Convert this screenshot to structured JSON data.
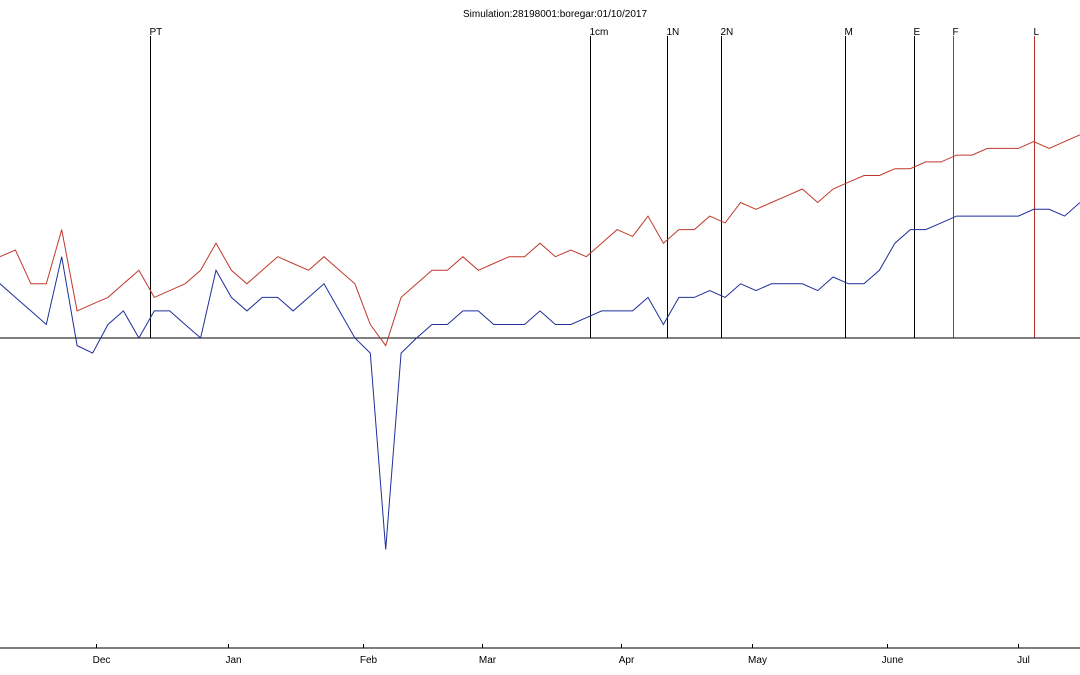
{
  "chart_data": {
    "type": "line",
    "title": "Simulation:28198001:boregar:01/10/2017",
    "x_axis": {
      "domain_days": [
        0,
        280
      ],
      "months": [
        {
          "label": "Dec",
          "day": 25
        },
        {
          "label": "Jan",
          "day": 59
        },
        {
          "label": "Feb",
          "day": 94
        },
        {
          "label": "Mar",
          "day": 125
        },
        {
          "label": "Apr",
          "day": 161
        },
        {
          "label": "May",
          "day": 195
        },
        {
          "label": "June",
          "day": 230
        },
        {
          "label": "Jul",
          "day": 264
        }
      ]
    },
    "y_axis": {
      "range": [
        -20,
        22
      ],
      "zero_line": true,
      "tick_labels": false
    },
    "events": [
      {
        "label": "PT",
        "day": 39,
        "color": "#000000"
      },
      {
        "label": "1cm",
        "day": 153,
        "color": "#000000"
      },
      {
        "label": "1N",
        "day": 173,
        "color": "#000000"
      },
      {
        "label": "2N",
        "day": 187,
        "color": "#000000"
      },
      {
        "label": "M",
        "day": 219,
        "color": "#000000"
      },
      {
        "label": "E",
        "day": 237,
        "color": "#000000"
      },
      {
        "label": "F",
        "day": 247,
        "color": "#b0302a"
      },
      {
        "label": "L",
        "day": 268,
        "color": "#b0302a"
      }
    ],
    "series": [
      {
        "color": "#c0392b",
        "points": [
          [
            0,
            6
          ],
          [
            4,
            6.5
          ],
          [
            8,
            4
          ],
          [
            12,
            4
          ],
          [
            16,
            8
          ],
          [
            20,
            2
          ],
          [
            24,
            2.5
          ],
          [
            28,
            3
          ],
          [
            32,
            4
          ],
          [
            36,
            5
          ],
          [
            40,
            3
          ],
          [
            44,
            3.5
          ],
          [
            48,
            4
          ],
          [
            52,
            5
          ],
          [
            56,
            7
          ],
          [
            60,
            5
          ],
          [
            64,
            4
          ],
          [
            68,
            5
          ],
          [
            72,
            6
          ],
          [
            76,
            5.5
          ],
          [
            80,
            5
          ],
          [
            84,
            6
          ],
          [
            88,
            5
          ],
          [
            92,
            4
          ],
          [
            96,
            1
          ],
          [
            100,
            -0.5
          ],
          [
            104,
            3
          ],
          [
            108,
            4
          ],
          [
            112,
            5
          ],
          [
            116,
            5
          ],
          [
            120,
            6
          ],
          [
            124,
            5
          ],
          [
            128,
            5.5
          ],
          [
            132,
            6
          ],
          [
            136,
            6
          ],
          [
            140,
            7
          ],
          [
            144,
            6
          ],
          [
            148,
            6.5
          ],
          [
            152,
            6
          ],
          [
            156,
            7
          ],
          [
            160,
            8
          ],
          [
            164,
            7.5
          ],
          [
            168,
            9
          ],
          [
            172,
            7
          ],
          [
            176,
            8
          ],
          [
            180,
            8
          ],
          [
            184,
            9
          ],
          [
            188,
            8.5
          ],
          [
            192,
            10
          ],
          [
            196,
            9.5
          ],
          [
            200,
            10
          ],
          [
            204,
            10.5
          ],
          [
            208,
            11
          ],
          [
            212,
            10
          ],
          [
            216,
            11
          ],
          [
            220,
            11.5
          ],
          [
            224,
            12
          ],
          [
            228,
            12
          ],
          [
            232,
            12.5
          ],
          [
            236,
            12.5
          ],
          [
            240,
            13
          ],
          [
            244,
            13
          ],
          [
            248,
            13.5
          ],
          [
            252,
            13.5
          ],
          [
            256,
            14
          ],
          [
            260,
            14
          ],
          [
            264,
            14
          ],
          [
            268,
            14.5
          ],
          [
            272,
            14
          ],
          [
            276,
            14.5
          ],
          [
            280,
            15
          ]
        ]
      },
      {
        "color": "#1f2f9a",
        "points": [
          [
            0,
            4
          ],
          [
            4,
            3
          ],
          [
            8,
            2
          ],
          [
            12,
            1
          ],
          [
            16,
            6
          ],
          [
            20,
            -0.5
          ],
          [
            24,
            -1
          ],
          [
            28,
            1
          ],
          [
            32,
            2
          ],
          [
            36,
            0
          ],
          [
            40,
            2
          ],
          [
            44,
            2
          ],
          [
            48,
            1
          ],
          [
            52,
            0
          ],
          [
            56,
            5
          ],
          [
            60,
            3
          ],
          [
            64,
            2
          ],
          [
            68,
            3
          ],
          [
            72,
            3
          ],
          [
            76,
            2
          ],
          [
            80,
            3
          ],
          [
            84,
            4
          ],
          [
            88,
            2
          ],
          [
            92,
            0
          ],
          [
            96,
            -1
          ],
          [
            100,
            -14
          ],
          [
            104,
            -1
          ],
          [
            108,
            0
          ],
          [
            112,
            1
          ],
          [
            116,
            1
          ],
          [
            120,
            2
          ],
          [
            124,
            2
          ],
          [
            128,
            1
          ],
          [
            132,
            1
          ],
          [
            136,
            1
          ],
          [
            140,
            2
          ],
          [
            144,
            1
          ],
          [
            148,
            1
          ],
          [
            152,
            1.5
          ],
          [
            156,
            2
          ],
          [
            160,
            2
          ],
          [
            164,
            2
          ],
          [
            168,
            3
          ],
          [
            172,
            1
          ],
          [
            176,
            3
          ],
          [
            180,
            3
          ],
          [
            184,
            3.5
          ],
          [
            188,
            3
          ],
          [
            192,
            4
          ],
          [
            196,
            3.5
          ],
          [
            200,
            4
          ],
          [
            204,
            4
          ],
          [
            208,
            4
          ],
          [
            212,
            3.5
          ],
          [
            216,
            4.5
          ],
          [
            220,
            4
          ],
          [
            224,
            4
          ],
          [
            228,
            5
          ],
          [
            232,
            7
          ],
          [
            236,
            8
          ],
          [
            240,
            8
          ],
          [
            244,
            8.5
          ],
          [
            248,
            9
          ],
          [
            252,
            9
          ],
          [
            256,
            9
          ],
          [
            260,
            9
          ],
          [
            264,
            9
          ],
          [
            268,
            9.5
          ],
          [
            272,
            9.5
          ],
          [
            276,
            9
          ],
          [
            280,
            10
          ]
        ]
      }
    ]
  }
}
